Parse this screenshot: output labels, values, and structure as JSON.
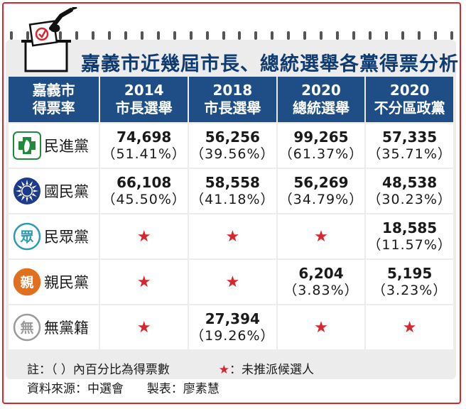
{
  "title": "嘉義市近幾屆市長、總統選舉各黨得票分析",
  "header": {
    "corner": [
      "嘉義市",
      "得票率"
    ],
    "columns": [
      [
        "2014",
        "市長選舉"
      ],
      [
        "2018",
        "市長選舉"
      ],
      [
        "2020",
        "總統選舉"
      ],
      [
        "2020",
        "不分區政黨"
      ]
    ]
  },
  "rows": [
    {
      "party": "民進黨",
      "icon": "dpp-logo-icon",
      "cells": [
        {
          "votes": "74,698",
          "pct": "（51.41%）"
        },
        {
          "votes": "56,256",
          "pct": "（39.56%）"
        },
        {
          "votes": "99,265",
          "pct": "（61.37%）"
        },
        {
          "votes": "57,335",
          "pct": "（35.71%）"
        }
      ]
    },
    {
      "party": "國民黨",
      "icon": "kmt-logo-icon",
      "cells": [
        {
          "votes": "66,108",
          "pct": "（45.50%）"
        },
        {
          "votes": "58,558",
          "pct": "（41.18%）"
        },
        {
          "votes": "56,269",
          "pct": "（34.79%）"
        },
        {
          "votes": "48,538",
          "pct": "（30.23%）"
        }
      ]
    },
    {
      "party": "民眾黨",
      "icon": "tpp-logo-icon",
      "logo_text": "眾",
      "cells": [
        {
          "star": "★"
        },
        {
          "star": "★"
        },
        {
          "star": "★"
        },
        {
          "votes": "18,585",
          "pct": "（11.57%）"
        }
      ]
    },
    {
      "party": "親民黨",
      "icon": "pfp-logo-icon",
      "logo_text": "親",
      "cells": [
        {
          "star": "★"
        },
        {
          "star": "★"
        },
        {
          "votes": "6,204",
          "pct": "（3.83%）"
        },
        {
          "votes": "5,195",
          "pct": "（3.23%）"
        }
      ]
    },
    {
      "party": "無黨籍",
      "icon": "independent-logo-icon",
      "logo_text": "無",
      "cells": [
        {
          "star": "★"
        },
        {
          "votes": "27,394",
          "pct": "（19.26%）"
        },
        {
          "star": "★"
        },
        {
          "star": "★"
        }
      ]
    }
  ],
  "notes": {
    "note_label": "註：",
    "note_text": "（ ）內百分比為得票數",
    "star": "★",
    "star_text": "：未推派候選人",
    "source": "資料來源：中選會",
    "maker": "製表：廖素慧"
  },
  "colors": {
    "header_bg": "#1f4e86",
    "title": "#0f3b73",
    "accent_red": "#d7262d",
    "dpp_green": "#1f8a3b",
    "kmt_blue": "#1e3a8a",
    "tpp_teal": "#2a9bb0",
    "pfp_orange": "#e07020"
  }
}
